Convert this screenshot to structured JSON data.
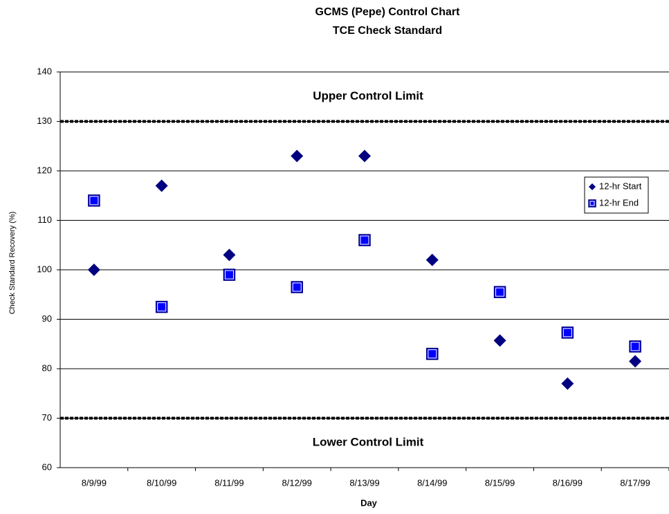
{
  "chart_data": {
    "type": "scatter",
    "title": "GCMS (Pepe) Control Chart",
    "subtitle": "TCE Check Standard",
    "x_label": "Day",
    "y_label": "Check Standard Recovery (%)",
    "categories": [
      "8/9/99",
      "8/10/99",
      "8/11/99",
      "8/12/99",
      "8/13/99",
      "8/14/99",
      "8/15/99",
      "8/16/99",
      "8/17/99"
    ],
    "series": [
      {
        "name": "12-hr Start",
        "color": "#000080",
        "marker": "diamond",
        "values": [
          100,
          117,
          103,
          123,
          123,
          102,
          85.7,
          77,
          81.5
        ]
      },
      {
        "name": "12-hr End",
        "color": "#0000ff",
        "marker": "square",
        "values": [
          114,
          92.5,
          99,
          96.5,
          106,
          83,
          95.5,
          87.3,
          84.5
        ]
      }
    ],
    "control_limits": [
      {
        "label": "Upper Control Limit",
        "value": 130
      },
      {
        "label": "Lower Control Limit",
        "value": 70
      }
    ],
    "ylim": [
      60,
      140
    ],
    "yticks": [
      60,
      70,
      80,
      90,
      100,
      110,
      120,
      130,
      140
    ],
    "grid": true,
    "legend": "right"
  }
}
